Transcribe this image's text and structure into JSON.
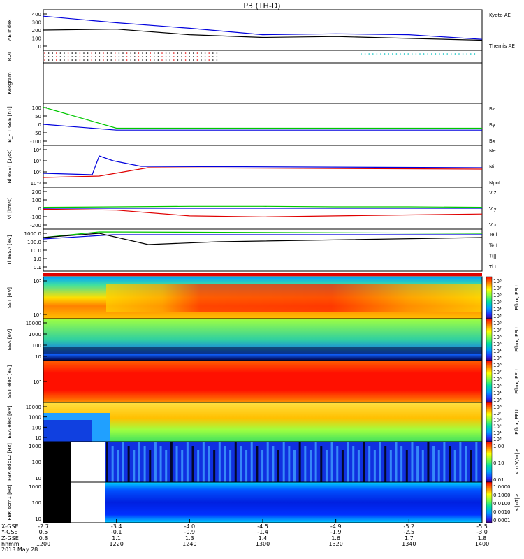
{
  "title": "P3 (TH-D)",
  "colors": {
    "red": "#e00000",
    "green": "#00c800",
    "blue": "#0000dd",
    "black": "#000000"
  },
  "panels": [
    {
      "id": "ae",
      "ylabel": "AE Index",
      "ticks": [
        "400",
        "300",
        "200",
        "100",
        "0"
      ],
      "legend": [
        {
          "text": "Kyoto AE",
          "color": "#0000dd"
        },
        {
          "text": "Themis AE",
          "color": "#000000"
        }
      ]
    },
    {
      "id": "roi",
      "ylabel": "ROI",
      "ticks": [],
      "legend": []
    },
    {
      "id": "keogram",
      "ylabel": "Keogram",
      "ticks": [],
      "legend": []
    },
    {
      "id": "bfit",
      "ylabel": "B_FIT GSE [nT]",
      "ticks": [
        "100",
        "50",
        "0",
        "-50",
        "-100"
      ],
      "legend": [
        {
          "text": "Bz",
          "color": "#e00000"
        },
        {
          "text": "By",
          "color": "#00c800"
        },
        {
          "text": "Bx",
          "color": "#0000dd"
        }
      ]
    },
    {
      "id": "ni",
      "ylabel": "Ni eSST [1/cc]",
      "ticks": [
        "10⁴",
        "10²",
        "10⁰",
        "10⁻²"
      ],
      "legend": [
        {
          "text": "Ne",
          "color": "#e00000"
        },
        {
          "text": "Ni",
          "color": "#000000"
        },
        {
          "text": "Npot",
          "color": "#0000dd"
        }
      ]
    },
    {
      "id": "vi",
      "ylabel": "Vi [km/s]",
      "ticks": [
        "200",
        "100",
        "0",
        "-100",
        "-200"
      ],
      "legend": [
        {
          "text": "Viz",
          "color": "#e00000"
        },
        {
          "text": "Viy",
          "color": "#00c800"
        },
        {
          "text": "Vix",
          "color": "#0000dd"
        }
      ]
    },
    {
      "id": "ti",
      "ylabel": "Ti eESA [eV]",
      "ticks": [
        "1000.0",
        "100.0",
        "10.0",
        "1.0",
        "0.1"
      ],
      "legend": [
        {
          "text": "Tell",
          "color": "#000000"
        },
        {
          "text": "Te⊥",
          "color": "#e00000"
        },
        {
          "text": "Ti||",
          "color": "#00c800"
        },
        {
          "text": "Ti⊥",
          "color": "#0000dd"
        }
      ]
    },
    {
      "id": "sst_i",
      "ylabel": "SST [eV]",
      "ticks": [
        "10⁵",
        "10⁴"
      ],
      "cbar": [
        "10⁸",
        "10⁷",
        "10⁶",
        "10⁵",
        "10⁴",
        "10³"
      ],
      "cbar_label": "Eflux, EFU"
    },
    {
      "id": "esa_i",
      "ylabel": "ESA [eV]",
      "ticks": [
        "10000",
        "1000",
        "100",
        "10"
      ],
      "cbar": [
        "10⁸",
        "10⁷",
        "10⁶",
        "10⁵",
        "10⁴",
        "10³"
      ],
      "cbar_label": "Eflux, EFU"
    },
    {
      "id": "sst_e",
      "ylabel": "SST elec [eV]",
      "ticks": [
        "10⁵"
      ],
      "cbar": [
        "10⁸",
        "10⁷",
        "10⁶",
        "10⁵",
        "10⁴",
        "10³"
      ],
      "cbar_label": "Eflux, EFU"
    },
    {
      "id": "esa_e",
      "ylabel": "ESA elec [eV]",
      "ticks": [
        "10000",
        "1000",
        "100",
        "10"
      ],
      "cbar": [
        "10⁸",
        "10⁷",
        "10⁶",
        "10⁵",
        "10⁴",
        "10³"
      ],
      "cbar_label": "Eflux, EFU"
    },
    {
      "id": "fbk_b",
      "ylabel": "FBK edc12 [Hz]",
      "ticks": [
        "1000",
        "100",
        "10"
      ],
      "cbar": [
        "1.00",
        "0.10",
        "0.01"
      ],
      "cbar_label": "<|mV/m|>"
    },
    {
      "id": "fbk_s",
      "ylabel": "FBK scm1 [Hz]",
      "ticks": [
        "1000",
        "100",
        "10"
      ],
      "cbar": [
        "1.0000",
        "0.1000",
        "0.0100",
        "0.0010",
        "0.0001"
      ],
      "cbar_label": "<|nT|>"
    }
  ],
  "footer": {
    "row_labels": [
      "X-GSE",
      "Y-GSE",
      "Z-GSE",
      "hhmm",
      "2013 May 28"
    ],
    "columns": [
      {
        "x": "-2.7",
        "y": "0.5",
        "z": "0.8",
        "t": "1200"
      },
      {
        "x": "-3.4",
        "y": "-0.1",
        "z": "1.1",
        "t": "1220"
      },
      {
        "x": "-4.0",
        "y": "-0.9",
        "z": "1.3",
        "t": "1240"
      },
      {
        "x": "-4.5",
        "y": "-1.4",
        "z": "1.4",
        "t": "1300"
      },
      {
        "x": "-4.9",
        "y": "-1.9",
        "z": "1.6",
        "t": "1320"
      },
      {
        "x": "-5.2",
        "y": "-2.5",
        "z": "1.7",
        "t": "1340"
      },
      {
        "x": "-5.5",
        "y": "-3.0",
        "z": "1.8",
        "t": "1400"
      }
    ]
  },
  "chart_data": {
    "type": "line",
    "title": "P3 (TH-D)",
    "x_unit": "hhmm",
    "x": [
      "1200",
      "1220",
      "1240",
      "1300",
      "1320",
      "1340",
      "1400"
    ],
    "series": [
      {
        "name": "Kyoto AE",
        "panel": "ae",
        "values": [
          350,
          280,
          220,
          150,
          160,
          150,
          100
        ]
      },
      {
        "name": "Themis AE",
        "panel": "ae",
        "values": [
          200,
          210,
          150,
          120,
          130,
          110,
          90
        ]
      },
      {
        "name": "Bx",
        "panel": "bfit",
        "values": [
          0,
          -30,
          -30,
          -30,
          -30,
          -30,
          -30
        ]
      },
      {
        "name": "By",
        "panel": "bfit",
        "values": [
          90,
          -20,
          -20,
          -20,
          -20,
          -20,
          -20
        ]
      },
      {
        "name": "Viz",
        "panel": "vi",
        "values": [
          -10,
          -20,
          -80,
          -90,
          -80,
          -70,
          -60
        ]
      },
      {
        "name": "Viy",
        "panel": "vi",
        "values": [
          10,
          15,
          20,
          20,
          15,
          15,
          10
        ]
      }
    ]
  }
}
